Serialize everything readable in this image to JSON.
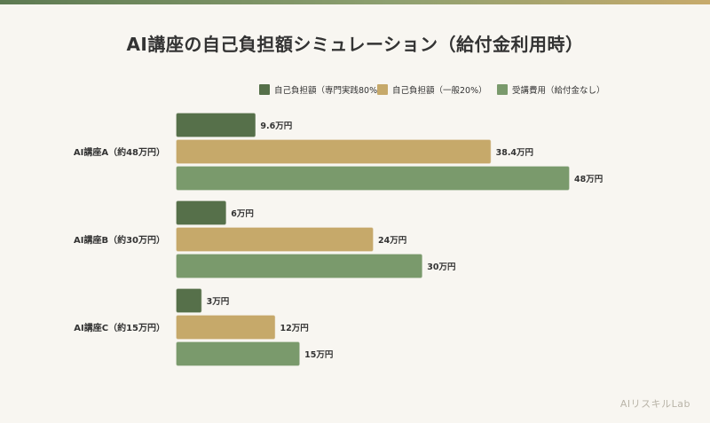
{
  "title": "AI講座の自己負担額シミュレーション（給付金利用時）",
  "watermark": "AIリスキルLab",
  "colors": {
    "background": "#f8f6f1",
    "series_specialized": "#56704a",
    "series_general": "#c6a96a",
    "series_full": "#7a9a6c"
  },
  "chart_data": {
    "type": "bar",
    "orientation": "horizontal",
    "title": "AI講座の自己負担額シミュレーション（給付金利用時）",
    "categories": [
      "AI講座A（約48万円）",
      "AI講座B（約30万円）",
      "AI講座C（約15万円）"
    ],
    "series": [
      {
        "name": "自己負担額（専門実践80%）",
        "color": "#56704a",
        "values": [
          9.6,
          6,
          3
        ],
        "labels": [
          "9.6万円",
          "6万円",
          "3万円"
        ]
      },
      {
        "name": "自己負担額（一般20%）",
        "color": "#c6a96a",
        "values": [
          38.4,
          24,
          12
        ],
        "labels": [
          "38.4万円",
          "24万円",
          "12万円"
        ]
      },
      {
        "name": "受講費用（給付金なし）",
        "color": "#7a9a6c",
        "values": [
          48,
          30,
          15
        ],
        "labels": [
          "48万円",
          "30万円",
          "15万円"
        ]
      }
    ],
    "xlim": [
      0,
      48
    ],
    "grid": false,
    "legend_position": "top-right"
  }
}
